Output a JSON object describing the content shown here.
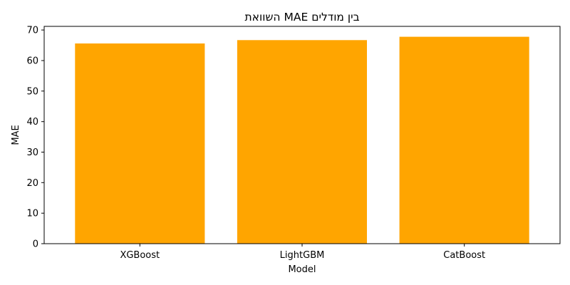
{
  "chart_data": {
    "type": "bar",
    "title": "השוואת MAE בין מודלים",
    "xlabel": "Model",
    "ylabel": "MAE",
    "categories": [
      "XGBoost",
      "LightGBM",
      "CatBoost"
    ],
    "values": [
      65.6,
      66.7,
      67.8
    ],
    "ylim": [
      0,
      71.2
    ],
    "yticks": [
      "0",
      "10",
      "20",
      "30",
      "40",
      "50",
      "60",
      "70"
    ],
    "bar_color": "#ffa500",
    "grid": false,
    "legend": "none"
  }
}
